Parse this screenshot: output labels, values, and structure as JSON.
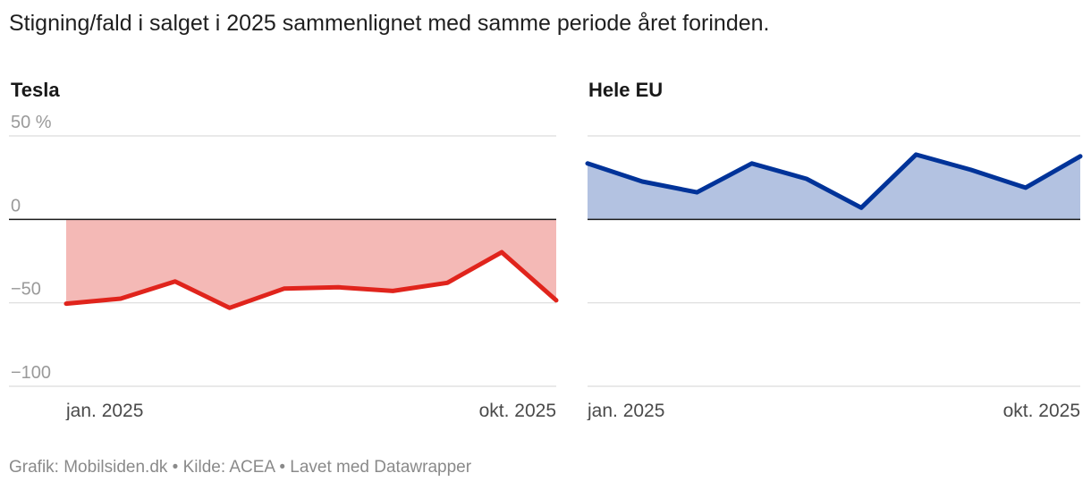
{
  "title": "Stigning/fald i salget i 2025 sammenlignet med samme periode året forinden.",
  "footer": "Grafik: Mobilsiden.dk • Kilde: ACEA • Lavet med Datawrapper",
  "chart_data": [
    {
      "type": "area",
      "title": "Tesla",
      "x": [
        "jan. 2025",
        "feb. 2025",
        "mar. 2025",
        "apr. 2025",
        "maj 2025",
        "jun. 2025",
        "jul. 2025",
        "aug. 2025",
        "sep. 2025",
        "okt. 2025"
      ],
      "x_tick_labels": [
        "jan. 2025",
        "okt. 2025"
      ],
      "values": [
        -50.5,
        -47.5,
        -37.2,
        -53.0,
        -41.5,
        -40.7,
        -42.9,
        -38.0,
        -19.7,
        -48.5
      ],
      "y_ticks": [
        50,
        0,
        -50,
        -100
      ],
      "y_tick_labels": [
        "50 %",
        "0",
        "−50",
        "−100"
      ],
      "ylim": [
        -100,
        50
      ],
      "line_color": "#e0241c",
      "fill_color": "#f4b9b6",
      "grid": true
    },
    {
      "type": "area",
      "title": "Hele EU",
      "x": [
        "jan. 2025",
        "feb. 2025",
        "mar. 2025",
        "apr. 2025",
        "maj 2025",
        "jun. 2025",
        "jul. 2025",
        "aug. 2025",
        "sep. 2025",
        "okt. 2025"
      ],
      "x_tick_labels": [
        "jan. 2025",
        "okt. 2025"
      ],
      "values": [
        33.5,
        22.7,
        16.2,
        33.5,
        24.3,
        7.0,
        38.8,
        29.7,
        19.0,
        37.8
      ],
      "y_ticks": [
        50,
        0,
        -50,
        -100
      ],
      "ylim": [
        -100,
        50
      ],
      "line_color": "#003399",
      "fill_color": "#b3c2e1",
      "grid": true
    }
  ]
}
